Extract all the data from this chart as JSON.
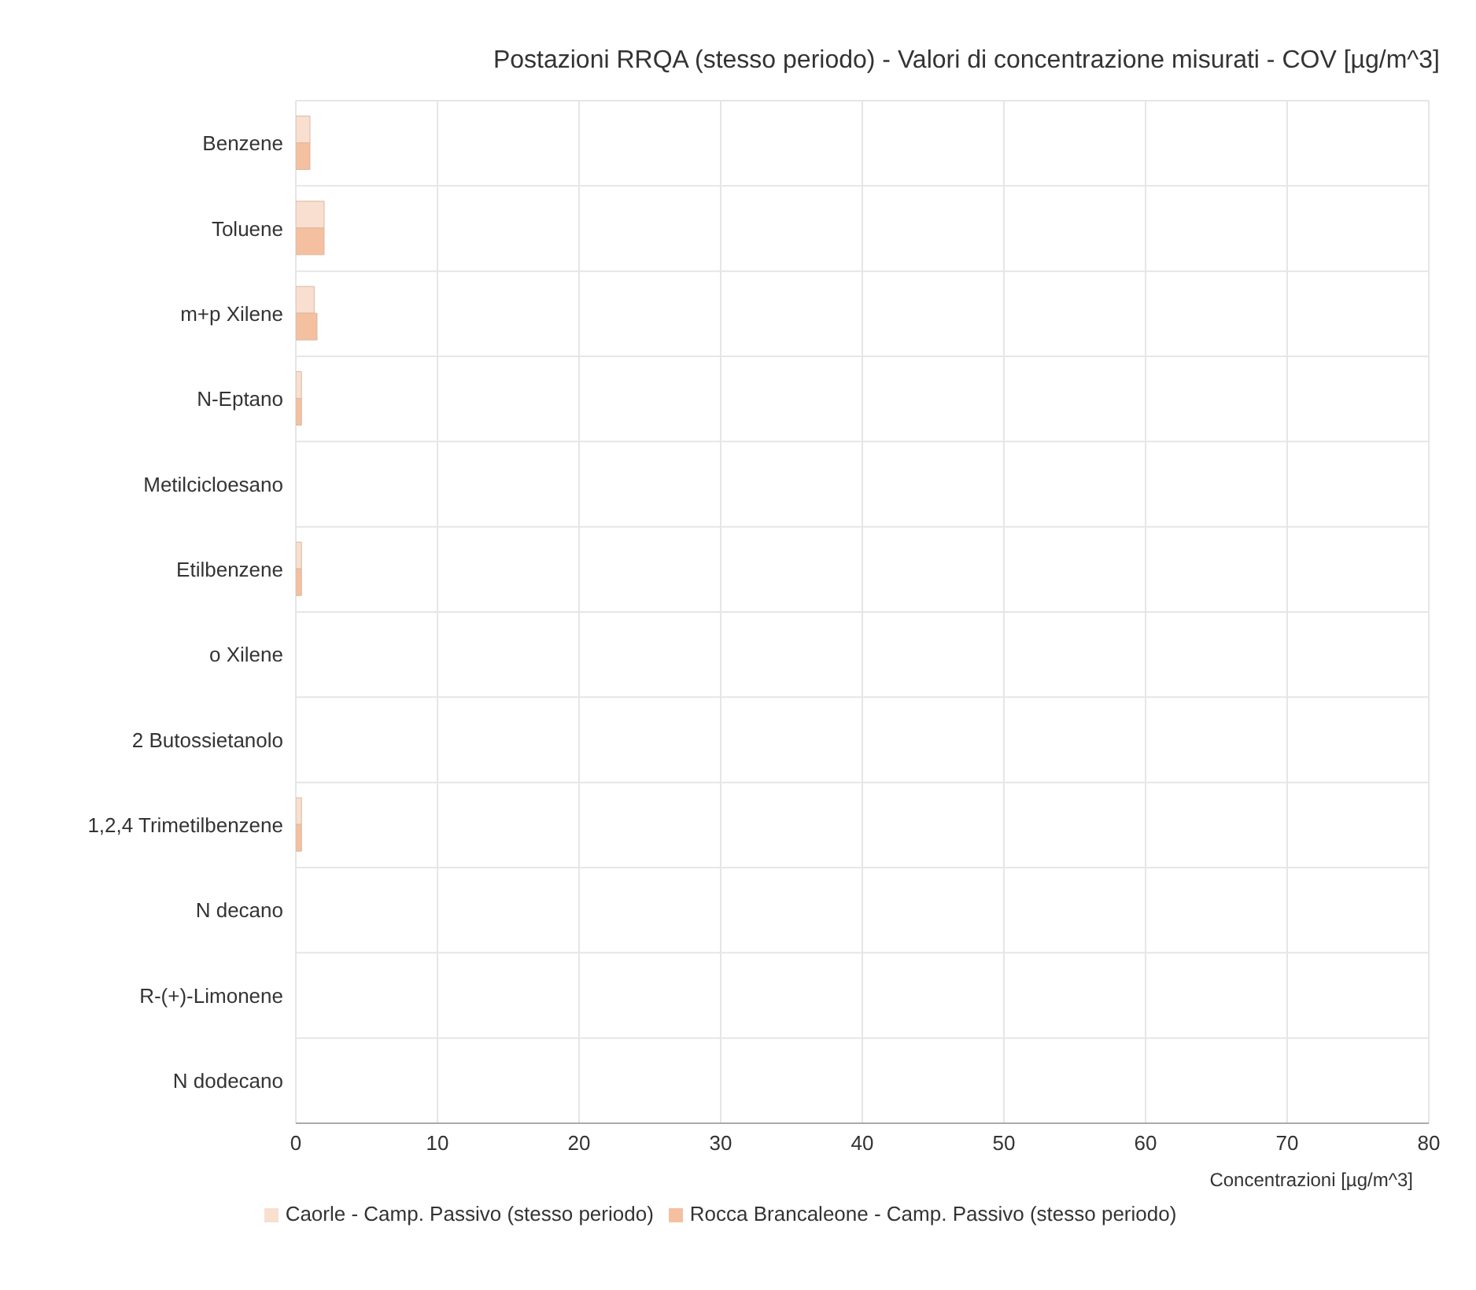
{
  "chart_data": {
    "type": "bar",
    "orientation": "horizontal",
    "title": "Postazioni RRQA (stesso periodo) - Valori di concentrazione misurati - COV [µg/m^3]",
    "xlabel": "Concentrazioni  [µg/m^3]",
    "categories": [
      "Benzene",
      "Toluene",
      "m+p Xilene",
      "N-Eptano",
      "Metilcicloesano",
      "Etilbenzene",
      "o Xilene",
      "2 Butossietanolo",
      "1,2,4 Trimetilbenzene",
      "N decano",
      "R-(+)-Limonene",
      "N dodecano"
    ],
    "series": [
      {
        "name": "Caorle - Camp. Passivo (stesso periodo)",
        "color": "#f9dfcf",
        "values": [
          1.0,
          2.0,
          1.3,
          0.4,
          0,
          0.4,
          0,
          0,
          0.4,
          0,
          0,
          0
        ]
      },
      {
        "name": "Rocca Brancaleone - Camp. Passivo (stesso periodo)",
        "color": "#f4c09f",
        "values": [
          1.0,
          2.0,
          1.5,
          0.4,
          0,
          0.4,
          0,
          0,
          0.4,
          0,
          0,
          0
        ]
      }
    ],
    "xlim": [
      0,
      80
    ],
    "xticks": [
      0,
      10,
      20,
      30,
      40,
      50,
      60,
      70,
      80
    ],
    "grid": true,
    "legend": "bottom"
  }
}
